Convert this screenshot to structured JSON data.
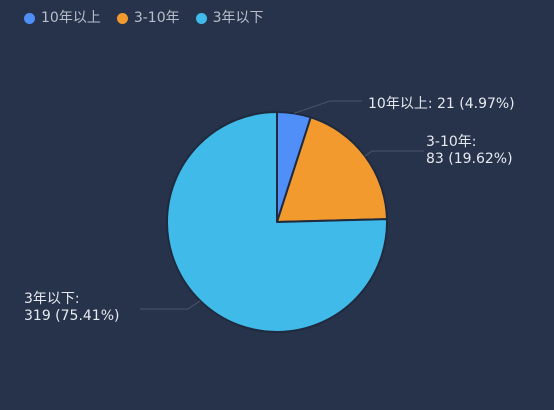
{
  "legend": {
    "items": [
      {
        "label": "10年以上",
        "color": "#4f8ff7"
      },
      {
        "label": "3-10年",
        "color": "#f29a2e"
      },
      {
        "label": "3年以下",
        "color": "#40bbe9"
      }
    ]
  },
  "chart_data": {
    "type": "pie",
    "categories": [
      "10年以上",
      "3-10年",
      "3年以下"
    ],
    "values": [
      21,
      83,
      319
    ],
    "percents": [
      "4.97%",
      "19.62%",
      "75.41%"
    ],
    "colors": [
      "#4f8ff7",
      "#f29a2e",
      "#40bbe9"
    ],
    "labels": [
      {
        "lines": [
          "10年以上: 21 (4.97%)"
        ]
      },
      {
        "lines": [
          "3-10年:",
          "83 (19.62%)"
        ]
      },
      {
        "lines": [
          "3年以下:",
          "319 (75.41%)"
        ]
      }
    ],
    "legend_position": "top-left",
    "start_angle": "12 o'clock",
    "direction": "clockwise"
  }
}
